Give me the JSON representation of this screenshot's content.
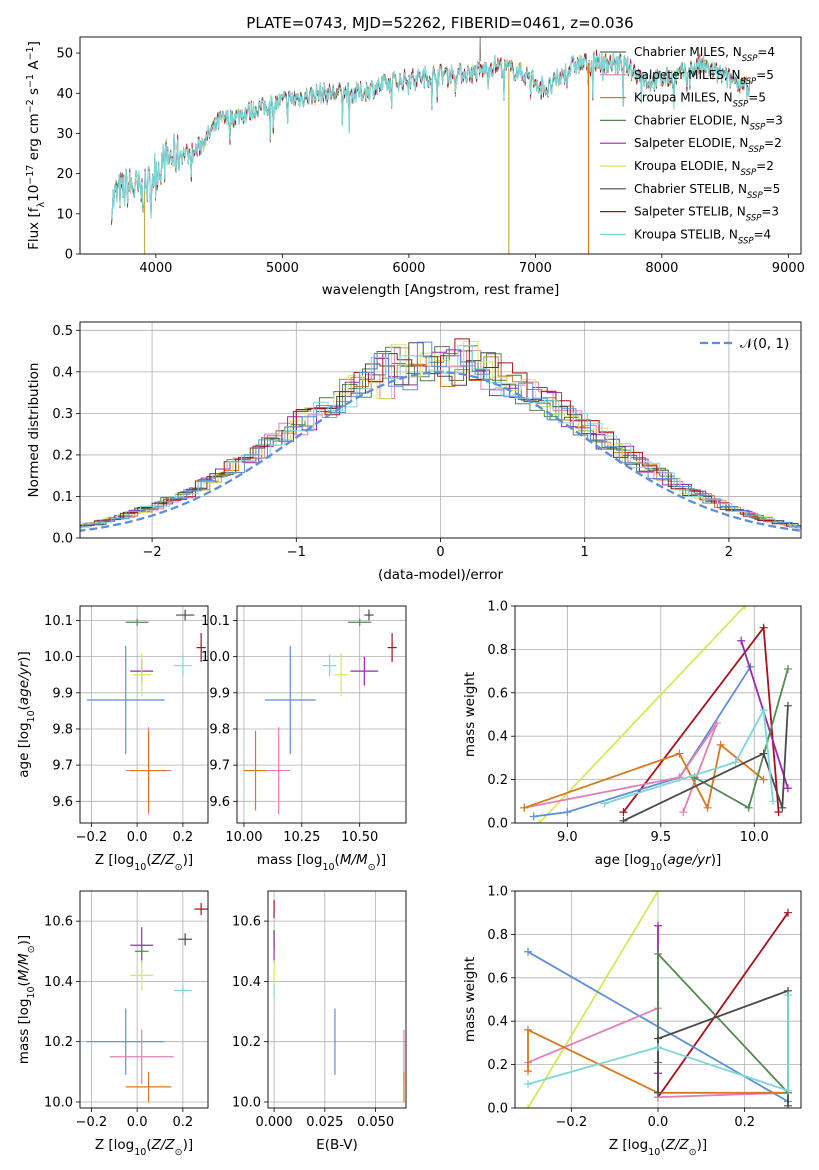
{
  "title": "PLATE=0743, MJD=52262, FIBERID=0461, z=0.036",
  "chart_data": [
    {
      "type": "line",
      "id": "spectrum",
      "xlabel": "wavelength [Angstrom, rest frame]",
      "ylabel": "Flux [fλ10⁻¹⁷ erg cm⁻² s⁻¹ A⁻¹]",
      "xlim": [
        3400,
        9100
      ],
      "ylim": [
        0,
        54
      ],
      "xticks": [
        4000,
        5000,
        6000,
        7000,
        8000,
        9000
      ],
      "yticks": [
        0,
        10,
        20,
        30,
        40,
        50
      ],
      "continuum": {
        "x": [
          3650,
          3700,
          3800,
          3900,
          4000,
          4100,
          4200,
          4300,
          4400,
          4500,
          4700,
          5000,
          5300,
          5600,
          5900,
          6100,
          6300,
          6500,
          6700,
          6900,
          7100,
          7300,
          7500,
          7700,
          7900,
          8100,
          8300,
          8500,
          8700
        ],
        "y": [
          13,
          15,
          17,
          15,
          21,
          24,
          25,
          25,
          29,
          33,
          35,
          38,
          40,
          40,
          43,
          44,
          45,
          45,
          47,
          45,
          41,
          47,
          48,
          47,
          43,
          44,
          47,
          44,
          42
        ]
      },
      "series": [
        {
          "name": "Chabrier MILES, N",
          "sub": "SSP",
          "suffix": "=4",
          "color": "#4d7a4a"
        },
        {
          "name": "Salpeter MILES, N",
          "sub": "SSP",
          "suffix": "=5",
          "color": "#e47fb5"
        },
        {
          "name": "Kroupa MILES, N",
          "sub": "SSP",
          "suffix": "=5",
          "color": "#d8791d"
        },
        {
          "name": "Chabrier ELODIE, N",
          "sub": "SSP",
          "suffix": "=3",
          "color": "#538a53"
        },
        {
          "name": "Salpeter ELODIE, N",
          "sub": "SSP",
          "suffix": "=2",
          "color": "#9b27b4"
        },
        {
          "name": "Kroupa ELODIE, N",
          "sub": "SSP",
          "suffix": "=2",
          "color": "#d7e85c"
        },
        {
          "name": "Chabrier STELIB, N",
          "sub": "SSP",
          "suffix": "=5",
          "color": "#4a4a4a"
        },
        {
          "name": "Salpeter STELIB, N",
          "sub": "SSP",
          "suffix": "=3",
          "color": "#a8101e"
        },
        {
          "name": "Kroupa STELIB, N",
          "sub": "SSP",
          "suffix": "=4",
          "color": "#7fd6d8"
        }
      ],
      "dropouts": [
        {
          "x": 3910,
          "color": "#c9a94a"
        },
        {
          "x": 6790,
          "color": "#c9a94a"
        },
        {
          "x": 7420,
          "color": "#d8791d"
        }
      ]
    },
    {
      "type": "line",
      "id": "residuals",
      "xlabel": "(data-model)/error",
      "ylabel": "Normed distribution",
      "xlim": [
        -2.5,
        2.5
      ],
      "ylim": [
        0,
        0.52
      ],
      "xticks": [
        -2,
        -1,
        0,
        1,
        2
      ],
      "yticks": [
        0.0,
        0.1,
        0.2,
        0.3,
        0.4,
        0.5
      ],
      "legend": "𝒩(0, 1)",
      "curve_color": "#5b8fd8",
      "hist_colors": [
        "#4d7a4a",
        "#e47fb5",
        "#d8791d",
        "#538a53",
        "#9b27b4",
        "#d7e85c",
        "#4a4a4a",
        "#a8101e",
        "#7fd6d8",
        "#5b8fd8"
      ]
    },
    {
      "type": "scatter",
      "id": "age-vs-Z",
      "xlabel": "Z [log10(Z/Z⊙)]",
      "ylabel": "age [log10(age/yr)]",
      "xlim": [
        -0.25,
        0.31
      ],
      "ylim": [
        9.54,
        10.14
      ],
      "xticks": [
        -0.2,
        0.0,
        0.2
      ],
      "yticks": [
        9.6,
        9.7,
        9.8,
        9.9,
        10.0,
        10.1
      ],
      "points": [
        {
          "x": 0.0,
          "y": 10.095,
          "ex": 0.05,
          "ey": 0.01,
          "color": "#538a53"
        },
        {
          "x": 0.21,
          "y": 10.115,
          "ex": 0.04,
          "ey": 0.015,
          "color": "#4a4a4a"
        },
        {
          "x": 0.28,
          "y": 10.025,
          "ex": 0.02,
          "ey": 0.04,
          "color": "#a8101e"
        },
        {
          "x": 0.2,
          "y": 9.975,
          "ex": 0.04,
          "ey": 0.03,
          "color": "#7fd6d8"
        },
        {
          "x": 0.02,
          "y": 9.96,
          "ex": 0.05,
          "ey": 0.03,
          "color": "#9b27b4"
        },
        {
          "x": 0.02,
          "y": 9.95,
          "ex": 0.04,
          "ey": 0.06,
          "color": "#d7e85c"
        },
        {
          "x": -0.05,
          "y": 9.88,
          "ex": 0.17,
          "ey": 0.15,
          "color": "#5b8fd8"
        },
        {
          "x": 0.05,
          "y": 9.685,
          "ex": 0.1,
          "ey": 0.12,
          "color": "#e47fb5"
        },
        {
          "x": 0.05,
          "y": 9.685,
          "ex": 0.08,
          "ey": 0.11,
          "color": "#d8791d"
        }
      ]
    },
    {
      "type": "scatter",
      "id": "age-vs-mass",
      "xlabel": "mass [log10(M/M⊙)]",
      "ylabel": "",
      "xlim": [
        9.97,
        10.7
      ],
      "ylim": [
        9.54,
        10.14
      ],
      "xticks": [
        10.0,
        10.25,
        10.5
      ],
      "yticks": [
        9.6,
        9.7,
        9.8,
        9.9,
        10.0,
        10.1
      ],
      "points": [
        {
          "x": 10.5,
          "y": 10.095,
          "ex": 0.05,
          "ey": 0.01,
          "color": "#538a53"
        },
        {
          "x": 10.54,
          "y": 10.115,
          "ex": 0.02,
          "ey": 0.015,
          "color": "#4a4a4a"
        },
        {
          "x": 10.64,
          "y": 10.025,
          "ex": 0.02,
          "ey": 0.04,
          "color": "#a8101e"
        },
        {
          "x": 10.37,
          "y": 9.975,
          "ex": 0.03,
          "ey": 0.03,
          "color": "#7fd6d8"
        },
        {
          "x": 10.52,
          "y": 9.96,
          "ex": 0.06,
          "ey": 0.04,
          "color": "#9b27b4"
        },
        {
          "x": 10.42,
          "y": 9.95,
          "ex": 0.03,
          "ey": 0.06,
          "color": "#d7e85c"
        },
        {
          "x": 10.2,
          "y": 9.88,
          "ex": 0.11,
          "ey": 0.15,
          "color": "#5b8fd8"
        },
        {
          "x": 10.15,
          "y": 9.685,
          "ex": 0.05,
          "ey": 0.12,
          "color": "#e47fb5"
        },
        {
          "x": 10.05,
          "y": 9.685,
          "ex": 0.05,
          "ey": 0.11,
          "color": "#d8791d"
        }
      ]
    },
    {
      "type": "line",
      "id": "weight-vs-age",
      "xlabel": "age [log10(age/yr)]",
      "ylabel": "mass weight",
      "xlim": [
        8.72,
        10.25
      ],
      "ylim": [
        0,
        1.0
      ],
      "xticks": [
        9.0,
        9.5,
        10.0
      ],
      "yticks": [
        0.0,
        0.2,
        0.4,
        0.6,
        0.8,
        1.0
      ],
      "series": [
        {
          "color": "#d7e85c",
          "x": [
            8.85,
            9.95
          ],
          "y": [
            0.0,
            1.0
          ]
        },
        {
          "color": "#a8101e",
          "x": [
            9.3,
            10.05,
            10.13
          ],
          "y": [
            0.05,
            0.9,
            0.05
          ]
        },
        {
          "color": "#5b8fd8",
          "x": [
            8.82,
            9.0,
            9.6,
            9.98,
            9.6
          ],
          "y": [
            0.03,
            0.05,
            0.21,
            0.72,
            0.21
          ]
        },
        {
          "color": "#e47fb5",
          "x": [
            8.77,
            9.6,
            9.8,
            9.62
          ],
          "y": [
            0.07,
            0.21,
            0.46,
            0.05
          ]
        },
        {
          "color": "#d8791d",
          "x": [
            8.77,
            9.6,
            9.75,
            9.82,
            10.05
          ],
          "y": [
            0.07,
            0.32,
            0.07,
            0.36,
            0.2
          ]
        },
        {
          "color": "#9b27b4",
          "x": [
            9.93,
            10.18
          ],
          "y": [
            0.84,
            0.16
          ]
        },
        {
          "color": "#538a53",
          "x": [
            9.68,
            9.97,
            10.18
          ],
          "y": [
            0.21,
            0.07,
            0.71
          ]
        },
        {
          "color": "#4a4a4a",
          "x": [
            9.3,
            10.05,
            10.15,
            10.18
          ],
          "y": [
            0.01,
            0.32,
            0.07,
            0.54
          ]
        },
        {
          "color": "#7fd6d8",
          "x": [
            9.2,
            9.9,
            10.05,
            10.1
          ],
          "y": [
            0.09,
            0.28,
            0.52,
            0.1
          ]
        }
      ]
    },
    {
      "type": "scatter",
      "id": "mass-vs-Z",
      "xlabel": "Z [log10(Z/Z⊙)]",
      "ylabel": "mass [log10(M/M⊙)]",
      "xlim": [
        -0.25,
        0.31
      ],
      "ylim": [
        9.98,
        10.7
      ],
      "xticks": [
        -0.2,
        0.0,
        0.2
      ],
      "yticks": [
        10.0,
        10.2,
        10.4,
        10.6
      ],
      "points": [
        {
          "x": 0.28,
          "y": 10.64,
          "ex": 0.03,
          "ey": 0.02,
          "color": "#a8101e"
        },
        {
          "x": 0.21,
          "y": 10.54,
          "ex": 0.03,
          "ey": 0.02,
          "color": "#4a4a4a"
        },
        {
          "x": 0.02,
          "y": 10.52,
          "ex": 0.05,
          "ey": 0.06,
          "color": "#9b27b4"
        },
        {
          "x": 0.02,
          "y": 10.5,
          "ex": 0.03,
          "ey": 0.02,
          "color": "#538a53"
        },
        {
          "x": 0.02,
          "y": 10.42,
          "ex": 0.05,
          "ey": 0.05,
          "color": "#d7e85c"
        },
        {
          "x": 0.2,
          "y": 10.37,
          "ex": 0.04,
          "ey": 0.02,
          "color": "#7fd6d8"
        },
        {
          "x": -0.05,
          "y": 10.2,
          "ex": 0.17,
          "ey": 0.11,
          "color": "#5b8fd8"
        },
        {
          "x": 0.02,
          "y": 10.15,
          "ex": 0.14,
          "ey": 0.09,
          "color": "#e47fb5"
        },
        {
          "x": 0.05,
          "y": 10.05,
          "ex": 0.1,
          "ey": 0.05,
          "color": "#d8791d"
        }
      ]
    },
    {
      "type": "scatter",
      "id": "mass-vs-ebv",
      "xlabel": "E(B-V)",
      "ylabel": "",
      "xlim": [
        -0.003,
        0.065
      ],
      "ylim": [
        9.98,
        10.7
      ],
      "xticks": [
        0.0,
        0.025,
        0.05
      ],
      "yticks": [
        10.0,
        10.2,
        10.4,
        10.6
      ],
      "points": [
        {
          "x": 0.0,
          "y": 10.64,
          "ex": 0.0,
          "ey": 0.03,
          "color": "#a8101e"
        },
        {
          "x": 0.0,
          "y": 10.54,
          "ex": 0.0,
          "ey": 0.03,
          "color": "#4a4a4a"
        },
        {
          "x": 0.0,
          "y": 10.5,
          "ex": 0.0,
          "ey": 0.04,
          "color": "#9b27b4"
        },
        {
          "x": 0.0,
          "y": 10.42,
          "ex": 0.0,
          "ey": 0.05,
          "color": "#d7e85c"
        },
        {
          "x": 0.0,
          "y": 10.37,
          "ex": 0.0,
          "ey": 0.02,
          "color": "#7fd6d8"
        },
        {
          "x": 0.03,
          "y": 10.2,
          "ex": 0.0,
          "ey": 0.11,
          "color": "#5b8fd8"
        },
        {
          "x": 0.064,
          "y": 10.15,
          "ex": 0.0,
          "ey": 0.09,
          "color": "#e47fb5"
        },
        {
          "x": 0.064,
          "y": 10.05,
          "ex": 0.0,
          "ey": 0.05,
          "color": "#d8791d"
        }
      ]
    },
    {
      "type": "line",
      "id": "weight-vs-Z",
      "xlabel": "Z [log10(Z/Z⊙)]",
      "ylabel": "mass weight",
      "xlim": [
        -0.33,
        0.33
      ],
      "ylim": [
        0,
        1.0
      ],
      "xticks": [
        -0.2,
        0.0,
        0.2
      ],
      "yticks": [
        0.0,
        0.2,
        0.4,
        0.6,
        0.8,
        1.0
      ],
      "series": [
        {
          "color": "#d7e85c",
          "x": [
            -0.3,
            0.0
          ],
          "y": [
            0.0,
            1.0
          ]
        },
        {
          "color": "#a8101e",
          "x": [
            0.0,
            0.3
          ],
          "y": [
            0.05,
            0.9
          ]
        },
        {
          "color": "#5b8fd8",
          "x": [
            -0.3,
            0.3
          ],
          "y": [
            0.72,
            0.03
          ]
        },
        {
          "color": "#e47fb5",
          "x": [
            -0.3,
            0.0,
            0.0,
            0.3
          ],
          "y": [
            0.21,
            0.46,
            0.05,
            0.07
          ]
        },
        {
          "color": "#d8791d",
          "x": [
            -0.3,
            -0.3,
            0.0,
            0.3
          ],
          "y": [
            0.17,
            0.36,
            0.07,
            0.07
          ]
        },
        {
          "color": "#9b27b4",
          "x": [
            0.0,
            0.0
          ],
          "y": [
            0.16,
            0.84
          ]
        },
        {
          "color": "#538a53",
          "x": [
            0.0,
            0.0,
            0.3
          ],
          "y": [
            0.21,
            0.71,
            0.07
          ]
        },
        {
          "color": "#4a4a4a",
          "x": [
            0.0,
            0.0,
            0.3,
            0.3
          ],
          "y": [
            0.07,
            0.32,
            0.54,
            0.01
          ]
        },
        {
          "color": "#7fd6d8",
          "x": [
            -0.3,
            0.0,
            0.3,
            0.3
          ],
          "y": [
            0.11,
            0.28,
            0.08,
            0.52
          ]
        }
      ]
    }
  ]
}
